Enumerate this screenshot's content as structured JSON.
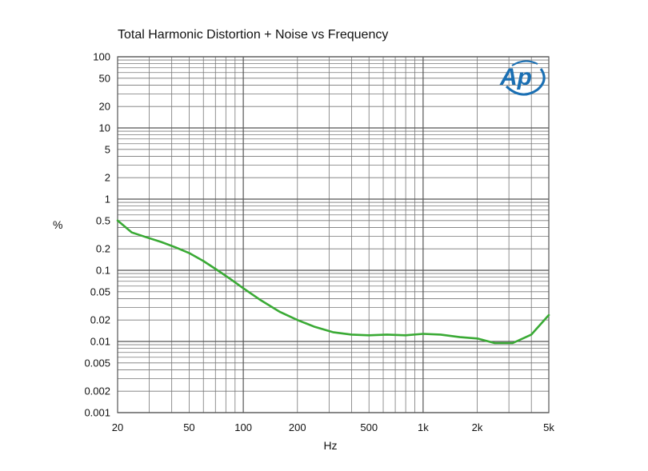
{
  "chart_data": {
    "type": "line",
    "title": "Total Harmonic Distortion + Noise vs Frequency",
    "xlabel": "Hz",
    "ylabel": "%",
    "xscale": "log",
    "yscale": "log",
    "xlim": [
      20,
      5000
    ],
    "ylim": [
      0.001,
      100
    ],
    "grid": true,
    "x_ticks": [
      {
        "value": 20,
        "label": "20"
      },
      {
        "value": 50,
        "label": "50"
      },
      {
        "value": 100,
        "label": "100"
      },
      {
        "value": 200,
        "label": "200"
      },
      {
        "value": 500,
        "label": "500"
      },
      {
        "value": 1000,
        "label": "1k"
      },
      {
        "value": 2000,
        "label": "2k"
      },
      {
        "value": 5000,
        "label": "5k"
      }
    ],
    "y_ticks": [
      {
        "value": 100,
        "label": "100"
      },
      {
        "value": 50,
        "label": "50"
      },
      {
        "value": 20,
        "label": "20"
      },
      {
        "value": 10,
        "label": "10"
      },
      {
        "value": 5,
        "label": "5"
      },
      {
        "value": 2,
        "label": "2"
      },
      {
        "value": 1,
        "label": "1"
      },
      {
        "value": 0.5,
        "label": "0.5"
      },
      {
        "value": 0.2,
        "label": "0.2"
      },
      {
        "value": 0.1,
        "label": "0.1"
      },
      {
        "value": 0.05,
        "label": "0.05"
      },
      {
        "value": 0.02,
        "label": "0.02"
      },
      {
        "value": 0.01,
        "label": "0.01"
      },
      {
        "value": 0.005,
        "label": "0.005"
      },
      {
        "value": 0.002,
        "label": "0.002"
      },
      {
        "value": 0.001,
        "label": "0.001"
      }
    ],
    "series": [
      {
        "color": "#3aaa35",
        "x": [
          20,
          24,
          29,
          35,
          42,
          50,
          60,
          72,
          85,
          100,
          125,
          160,
          200,
          250,
          315,
          400,
          500,
          630,
          800,
          1000,
          1250,
          1600,
          2000,
          2500,
          3150,
          4000,
          5000
        ],
        "y": [
          0.5,
          0.34,
          0.29,
          0.25,
          0.21,
          0.175,
          0.135,
          0.1,
          0.075,
          0.056,
          0.038,
          0.026,
          0.02,
          0.016,
          0.0135,
          0.0125,
          0.0122,
          0.0125,
          0.0122,
          0.0128,
          0.0125,
          0.0115,
          0.011,
          0.0095,
          0.0095,
          0.0125,
          0.0235
        ]
      }
    ]
  },
  "logo": {
    "text": "Ap",
    "color": "#1a6fb3"
  }
}
